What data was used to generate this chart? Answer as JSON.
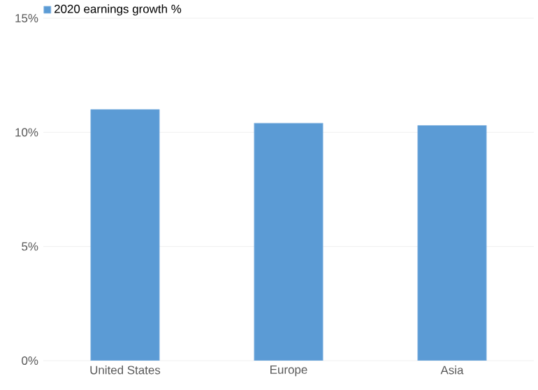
{
  "chart_data": {
    "type": "bar",
    "categories": [
      "United States",
      "Europe",
      "Asia"
    ],
    "series": [
      {
        "name": "2020 earnings growth %",
        "color": "#5b9bd5",
        "values": [
          11.0,
          10.4,
          10.3
        ]
      }
    ],
    "ylim": [
      0,
      15
    ],
    "yticks": [
      {
        "value": 0,
        "label": "0%"
      },
      {
        "value": 5,
        "label": "5%"
      },
      {
        "value": 10,
        "label": "10%"
      },
      {
        "value": 15,
        "label": "15%"
      }
    ],
    "grid": "y",
    "legend": "top left"
  }
}
